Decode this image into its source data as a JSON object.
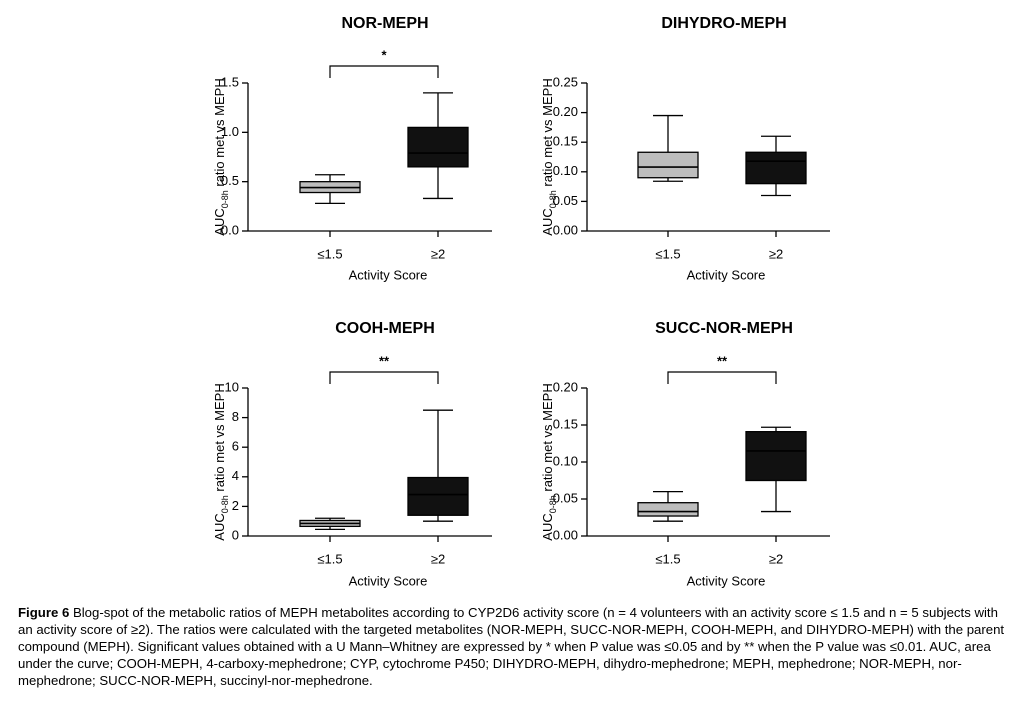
{
  "chart_data": [
    {
      "type": "box",
      "title": "NOR-MEPH",
      "ylabel_main": "AUC",
      "ylabel_sub": "0-8h",
      "ylabel_rest": " ratio met vs MEPH",
      "xlabel": "Activity Score",
      "categories": [
        "≤1.5",
        "≥2"
      ],
      "ylim": [
        0,
        1.5
      ],
      "yticks": [
        "0.0",
        "0.5",
        "1.0",
        "1.5"
      ],
      "ytick_values": [
        0,
        0.5,
        1.0,
        1.5
      ],
      "boxes": [
        {
          "category": "≤1.5",
          "min": 0.28,
          "q1": 0.39,
          "median": 0.44,
          "q3": 0.5,
          "max": 0.57,
          "color": "#bdbdbd"
        },
        {
          "category": "≥2",
          "min": 0.33,
          "q1": 0.65,
          "median": 0.79,
          "q3": 1.05,
          "max": 1.4,
          "color": "#111111"
        }
      ],
      "significance": "*"
    },
    {
      "type": "box",
      "title": "DIHYDRO-MEPH",
      "ylabel_main": "AUC",
      "ylabel_sub": "0-8h",
      "ylabel_rest": " ratio met vs MEPH",
      "xlabel": "Activity Score",
      "categories": [
        "≤1.5",
        "≥2"
      ],
      "ylim": [
        0,
        0.25
      ],
      "yticks": [
        "0.00",
        "0.05",
        "0.10",
        "0.15",
        "0.20",
        "0.25"
      ],
      "ytick_values": [
        0,
        0.05,
        0.1,
        0.15,
        0.2,
        0.25
      ],
      "boxes": [
        {
          "category": "≤1.5",
          "min": 0.084,
          "q1": 0.09,
          "median": 0.108,
          "q3": 0.133,
          "max": 0.195,
          "color": "#bdbdbd"
        },
        {
          "category": "≥2",
          "min": 0.06,
          "q1": 0.08,
          "median": 0.118,
          "q3": 0.133,
          "max": 0.16,
          "color": "#111111"
        }
      ],
      "significance": ""
    },
    {
      "type": "box",
      "title": "COOH-MEPH",
      "ylabel_main": "AUC",
      "ylabel_sub": "0-8h",
      "ylabel_rest": " ratio met vs MEPH",
      "xlabel": "Activity Score",
      "categories": [
        "≤1.5",
        "≥2"
      ],
      "ylim": [
        0,
        10
      ],
      "yticks": [
        "0",
        "2",
        "4",
        "6",
        "8",
        "10"
      ],
      "ytick_values": [
        0,
        2,
        4,
        6,
        8,
        10
      ],
      "boxes": [
        {
          "category": "≤1.5",
          "min": 0.45,
          "q1": 0.65,
          "median": 0.85,
          "q3": 1.05,
          "max": 1.2,
          "color": "#bdbdbd"
        },
        {
          "category": "≥2",
          "min": 1.0,
          "q1": 1.4,
          "median": 2.8,
          "q3": 3.95,
          "max": 8.5,
          "color": "#111111"
        }
      ],
      "significance": "**"
    },
    {
      "type": "box",
      "title": "SUCC-NOR-MEPH",
      "ylabel_main": "AUC",
      "ylabel_sub": "0-8h",
      "ylabel_rest": " ratio met vs MEPH",
      "xlabel": "Activity Score",
      "categories": [
        "≤1.5",
        "≥2"
      ],
      "ylim": [
        0,
        0.2
      ],
      "yticks": [
        "0.00",
        "0.05",
        "0.10",
        "0.15",
        "0.20"
      ],
      "ytick_values": [
        0,
        0.05,
        0.1,
        0.15,
        0.2
      ],
      "boxes": [
        {
          "category": "≤1.5",
          "min": 0.02,
          "q1": 0.027,
          "median": 0.033,
          "q3": 0.045,
          "max": 0.06,
          "color": "#bdbdbd"
        },
        {
          "category": "≥2",
          "min": 0.033,
          "q1": 0.075,
          "median": 0.115,
          "q3": 0.141,
          "max": 0.147,
          "color": "#111111"
        }
      ],
      "significance": "**"
    }
  ],
  "caption": {
    "lead": "Figure 6",
    "text": " Blog-spot of the metabolic ratios of MEPH metabolites according to CYP2D6 activity score (n = 4 volunteers with an activity score ≤ 1.5 and n = 5 subjects with an activity score of ≥2). The ratios were calculated with the targeted metabolites (NOR-MEPH, SUCC-NOR-MEPH, COOH-MEPH, and DIHYDRO-MEPH) with the parent compound (MEPH). Significant values obtained with a U Mann–Whitney are expressed by * when P value was ≤0.05 and by ** when the P value was ≤0.01. AUC, area under the curve; COOH-MEPH, 4-carboxy-mephedrone; CYP, cytochrome P450; DIHYDRO-MEPH, dihydro-mephedrone; MEPH, mephedrone; NOR-MEPH, nor-mephedrone; SUCC-NOR-MEPH, succinyl-nor-mephedrone."
  }
}
